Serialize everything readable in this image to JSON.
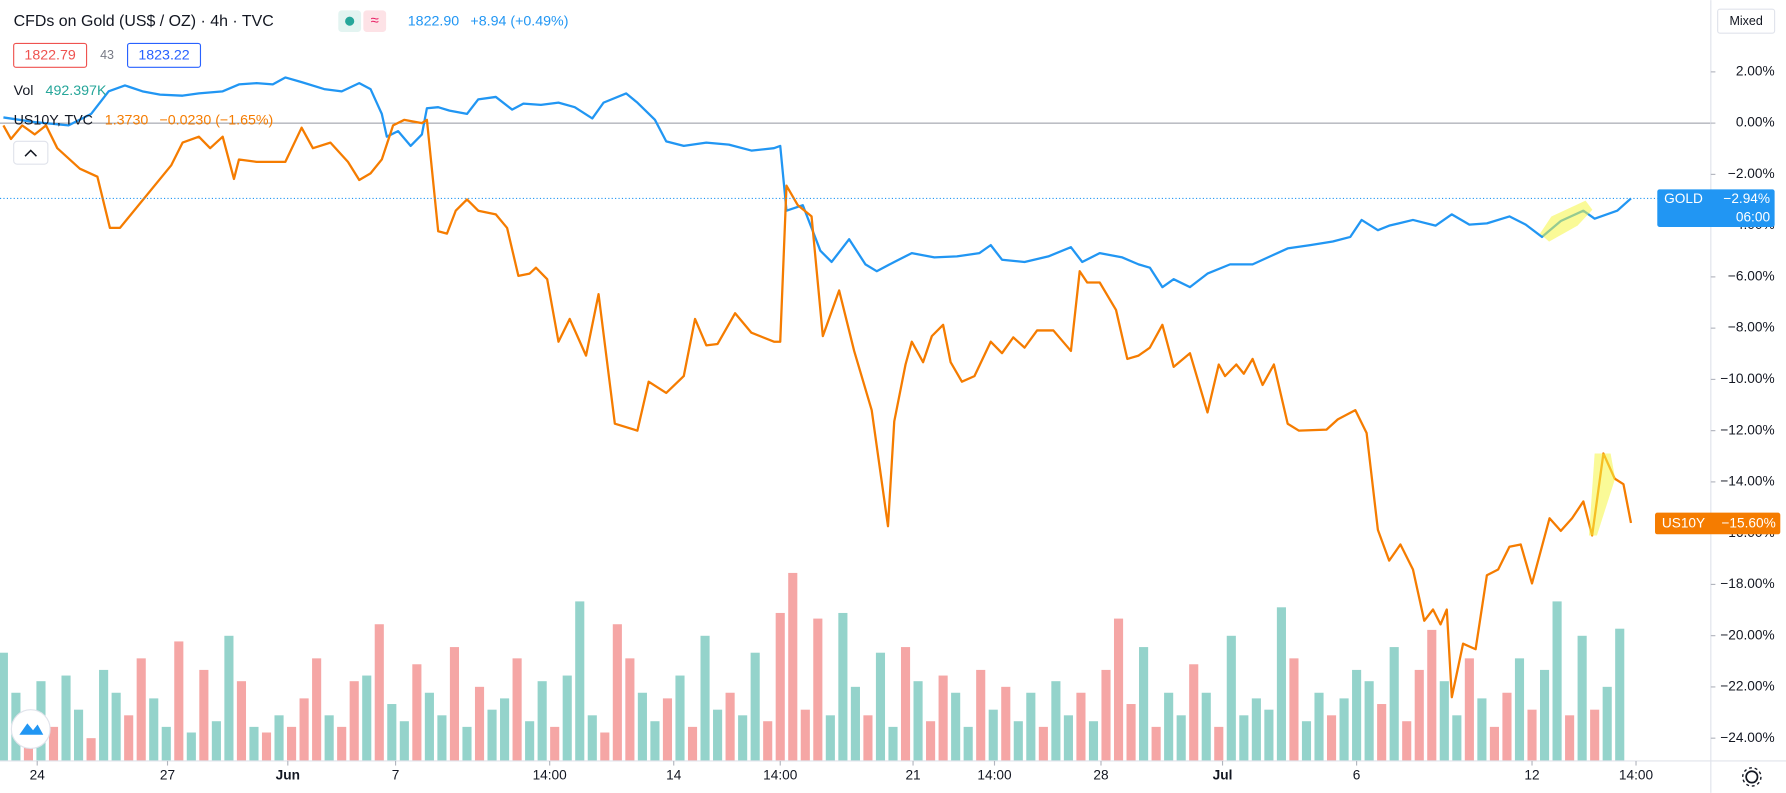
{
  "chart_data": {
    "type": "line",
    "title": "CFDs on Gold (US$ / OZ) · 4h · TVC",
    "price": "1822.90",
    "change": "+8.94 (+0.49%)",
    "bid": "1822.79",
    "spread": "43",
    "ask": "1823.22",
    "compare": {
      "name": "US10Y, TVC",
      "value": "1.3730",
      "change": "−0.0230 (−1.65%)"
    },
    "scale_mode": "Mixed",
    "countdown": "06:00",
    "xlim": [
      -0.27,
      136.27
    ],
    "ylim": [
      -24.89,
      4.8
    ],
    "zero_line": 0,
    "xticks": [
      {
        "value": 2.7,
        "label": "24"
      },
      {
        "value": 13.1,
        "label": "27"
      },
      {
        "value": 22.7,
        "label": "Jun"
      },
      {
        "value": 31.3,
        "label": "7"
      },
      {
        "value": 43.6,
        "label": "14:00"
      },
      {
        "value": 53.5,
        "label": "14"
      },
      {
        "value": 62,
        "label": "14:00"
      },
      {
        "value": 72.6,
        "label": "21"
      },
      {
        "value": 79.1,
        "label": "14:00"
      },
      {
        "value": 87.6,
        "label": "28"
      },
      {
        "value": 97.3,
        "label": "Jul"
      },
      {
        "value": 108,
        "label": "6"
      },
      {
        "value": 122,
        "label": "12"
      },
      {
        "value": 130.3,
        "label": "14:00"
      }
    ],
    "yticks": [
      {
        "value": 2,
        "label": "2.00%"
      },
      {
        "value": 0,
        "label": "0.00%"
      },
      {
        "value": -2,
        "label": "−2.00%"
      },
      {
        "value": -4,
        "label": "−4.00%"
      },
      {
        "value": -6,
        "label": "−6.00%"
      },
      {
        "value": -8,
        "label": "−8.00%"
      },
      {
        "value": -10,
        "label": "−10.00%"
      },
      {
        "value": -12,
        "label": "−12.00%"
      },
      {
        "value": -14,
        "label": "−14.00%"
      },
      {
        "value": -16,
        "label": "−16.00%"
      },
      {
        "value": -18,
        "label": "−18.00%"
      },
      {
        "value": -20,
        "label": "−20.00%"
      },
      {
        "value": -22,
        "label": "−22.00%"
      },
      {
        "value": -24,
        "label": "−24.00%"
      }
    ],
    "series": [
      {
        "name": "GOLD",
        "color": "#2196f3",
        "last_value_label": "−2.94%",
        "x": [
          0,
          2.5,
          5.2,
          7.0,
          8.4,
          9.7,
          11.1,
          12.5,
          14.3,
          15.6,
          17.5,
          18.8,
          20.2,
          21.5,
          22.5,
          23.8,
          25.6,
          27.0,
          28.4,
          29.3,
          30.2,
          30.6,
          31.5,
          32.5,
          33.4,
          33.8,
          34.7,
          35.6,
          37.0,
          37.9,
          39.3,
          40.6,
          41.5,
          42.9,
          44.3,
          45.6,
          47.0,
          47.9,
          49.7,
          50.6,
          52.0,
          52.9,
          54.3,
          56.1,
          57.9,
          59.7,
          61.5,
          62.0,
          62.5,
          63.8,
          65.2,
          66.1,
          67.5,
          68.8,
          69.7,
          71.1,
          72.5,
          74.3,
          76.1,
          77.9,
          78.8,
          79.7,
          81.5,
          83.4,
          85.2,
          86.1,
          87.5,
          89.3,
          90.6,
          91.5,
          92.5,
          93.4,
          94.7,
          96.1,
          97.9,
          99.7,
          101.1,
          102.5,
          104.3,
          106.1,
          107.5,
          108.4,
          109.7,
          110.6,
          112.5,
          114.3,
          115.6,
          117.0,
          118.4,
          120.2,
          121.5,
          122.8,
          124.3,
          126.1,
          127.0,
          128.8,
          129.9
        ],
        "values": [
          0.22,
          0.04,
          -0.09,
          0.36,
          1.24,
          1.47,
          1.24,
          1.11,
          1.07,
          1.16,
          1.24,
          1.51,
          1.56,
          1.51,
          1.78,
          1.6,
          1.33,
          1.24,
          1.56,
          1.33,
          0.36,
          -0.53,
          -0.31,
          -0.89,
          -0.44,
          0.58,
          0.62,
          0.49,
          0.36,
          0.93,
          1.02,
          0.53,
          0.76,
          0.71,
          0.8,
          0.62,
          0.18,
          0.8,
          1.16,
          0.8,
          0.13,
          -0.71,
          -0.89,
          -0.76,
          -0.84,
          -1.07,
          -0.98,
          -0.89,
          -3.42,
          -3.2,
          -4.98,
          -5.42,
          -4.53,
          -5.51,
          -5.78,
          -5.42,
          -5.07,
          -5.24,
          -5.2,
          -5.07,
          -4.76,
          -5.33,
          -5.42,
          -5.2,
          -4.84,
          -5.42,
          -5.07,
          -5.24,
          -5.51,
          -5.64,
          -6.4,
          -6.09,
          -6.4,
          -5.87,
          -5.51,
          -5.51,
          -5.2,
          -4.89,
          -4.76,
          -4.62,
          -4.44,
          -3.78,
          -4.18,
          -4.0,
          -3.78,
          -4.0,
          -3.56,
          -3.96,
          -3.91,
          -3.64,
          -3.96,
          -4.44,
          -3.82,
          -3.42,
          -3.73,
          -3.42,
          -2.94
        ]
      },
      {
        "name": "US10Y",
        "color": "#f57c00",
        "last_value_label": "−15.60%",
        "x": [
          0,
          0.6,
          1.5,
          2.5,
          3.4,
          4.3,
          6.1,
          7.5,
          8.5,
          9.3,
          13.4,
          14.3,
          15.6,
          16.5,
          17.5,
          18.4,
          18.8,
          20.2,
          22.5,
          23.8,
          24.7,
          26.1,
          27.5,
          28.4,
          29.3,
          30.2,
          31.1,
          32.0,
          33.4,
          33.8,
          34.7,
          35.4,
          36.1,
          37.0,
          37.9,
          39.3,
          40.2,
          41.1,
          42.0,
          42.5,
          43.4,
          44.3,
          45.2,
          46.5,
          47.5,
          48.8,
          50.6,
          51.5,
          52.9,
          54.3,
          55.2,
          56.1,
          57.0,
          58.4,
          59.7,
          61.5,
          62.0,
          62.5,
          63.4,
          64.5,
          65.4,
          66.7,
          67.9,
          69.3,
          70.6,
          71.1,
          72.0,
          72.5,
          73.4,
          74.1,
          75.0,
          75.6,
          76.5,
          77.5,
          78.8,
          79.7,
          80.6,
          81.5,
          82.5,
          83.8,
          85.2,
          85.9,
          86.5,
          87.5,
          88.8,
          89.7,
          90.6,
          91.5,
          92.5,
          93.4,
          94.7,
          96.1,
          97.0,
          97.5,
          98.4,
          99.0,
          99.7,
          100.5,
          101.4,
          102.5,
          103.4,
          105.6,
          106.5,
          107.9,
          108.8,
          109.7,
          110.6,
          111.5,
          112.5,
          113.4,
          114.1,
          114.7,
          115.2,
          115.6,
          116.5,
          117.5,
          118.4,
          119.3,
          120.2,
          121.1,
          122.0,
          123.4,
          124.3,
          125.2,
          126.1,
          126.8,
          127.7,
          128.6,
          129.3,
          129.9
        ],
        "values": [
          -0.09,
          -0.62,
          -0.09,
          -0.44,
          -0.09,
          -0.98,
          -1.78,
          -2.09,
          -4.09,
          -4.09,
          -1.64,
          -0.76,
          -0.53,
          -0.98,
          -0.53,
          -2.18,
          -1.42,
          -1.51,
          -1.51,
          -0.18,
          -0.98,
          -0.76,
          -1.51,
          -2.22,
          -1.96,
          -1.42,
          -0.09,
          0.13,
          0,
          0.13,
          -4.22,
          -4.31,
          -3.42,
          -2.98,
          -3.42,
          -3.56,
          -4.09,
          -5.96,
          -5.87,
          -5.64,
          -6.09,
          -8.53,
          -7.64,
          -9.07,
          -6.67,
          -11.73,
          -12.0,
          -10.09,
          -10.53,
          -9.87,
          -7.64,
          -8.67,
          -8.62,
          -7.42,
          -8.18,
          -8.53,
          -8.53,
          -2.44,
          -3.2,
          -3.64,
          -8.31,
          -6.53,
          -8.89,
          -11.2,
          -15.73,
          -11.64,
          -9.42,
          -8.53,
          -9.33,
          -8.31,
          -7.87,
          -9.33,
          -10.09,
          -9.87,
          -8.53,
          -8.98,
          -8.36,
          -8.76,
          -8.09,
          -8.09,
          -8.89,
          -5.78,
          -6.22,
          -6.22,
          -7.29,
          -9.2,
          -9.07,
          -8.76,
          -7.87,
          -9.51,
          -8.98,
          -11.29,
          -9.42,
          -9.87,
          -9.42,
          -9.78,
          -9.2,
          -10.22,
          -9.42,
          -11.73,
          -12.0,
          -11.96,
          -11.56,
          -11.2,
          -12.09,
          -15.87,
          -17.07,
          -16.44,
          -17.42,
          -19.42,
          -18.98,
          -19.56,
          -18.98,
          -22.4,
          -20.31,
          -20.53,
          -17.64,
          -17.42,
          -16.53,
          -16.44,
          -17.96,
          -15.42,
          -15.91,
          -15.42,
          -14.76,
          -16.09,
          -12.89,
          -13.87,
          -14.09,
          -15.6
        ]
      }
    ],
    "volume": {
      "name": "Vol",
      "last_value_label": "492.397K",
      "up_color": "#94d3cb",
      "down_color": "#f5a6a5",
      "lim": [
        0,
        2832
      ],
      "values": [
        403,
        254,
        170,
        297,
        127,
        318,
        191,
        85,
        339,
        254,
        170,
        382,
        233,
        127,
        445,
        106,
        339,
        148,
        466,
        297,
        127,
        106,
        170,
        127,
        233,
        382,
        170,
        127,
        297,
        318,
        509,
        212,
        148,
        360,
        254,
        170,
        424,
        127,
        276,
        191,
        233,
        382,
        148,
        297,
        127,
        318,
        594,
        170,
        106,
        509,
        382,
        254,
        148,
        233,
        318,
        127,
        466,
        191,
        254,
        170,
        403,
        148,
        551,
        700,
        191,
        530,
        170,
        551,
        276,
        170,
        403,
        127,
        424,
        297,
        148,
        318,
        254,
        127,
        339,
        191,
        276,
        148,
        254,
        127,
        297,
        170,
        254,
        148,
        339,
        530,
        212,
        424,
        127,
        254,
        170,
        360,
        254,
        127,
        466,
        170,
        233,
        191,
        572,
        382,
        148,
        254,
        170,
        233,
        339,
        297,
        212,
        424,
        148,
        339,
        488,
        297,
        170,
        382,
        233,
        127,
        254,
        382,
        191,
        339,
        594,
        170,
        466,
        191,
        276,
        492.397
      ],
      "rising": [
        true,
        true,
        false,
        true,
        false,
        true,
        true,
        false,
        true,
        true,
        false,
        false,
        true,
        true,
        false,
        true,
        false,
        true,
        true,
        false,
        true,
        false,
        true,
        false,
        false,
        false,
        true,
        false,
        false,
        true,
        false,
        true,
        true,
        false,
        true,
        true,
        false,
        true,
        false,
        true,
        true,
        false,
        true,
        true,
        false,
        true,
        true,
        true,
        false,
        false,
        false,
        true,
        true,
        false,
        true,
        false,
        true,
        true,
        false,
        true,
        true,
        false,
        false,
        false,
        false,
        false,
        true,
        true,
        true,
        false,
        true,
        true,
        false,
        true,
        false,
        false,
        true,
        true,
        false,
        true,
        false,
        true,
        true,
        false,
        true,
        true,
        false,
        true,
        false,
        false,
        false,
        true,
        false,
        true,
        true,
        false,
        true,
        false,
        true,
        true,
        true,
        true,
        true,
        false,
        true,
        true,
        false,
        true,
        true,
        true,
        false,
        true,
        false,
        false,
        false,
        true,
        true,
        false,
        true,
        false,
        false,
        true,
        false,
        true,
        true,
        false,
        true,
        false,
        true,
        true
      ]
    }
  }
}
